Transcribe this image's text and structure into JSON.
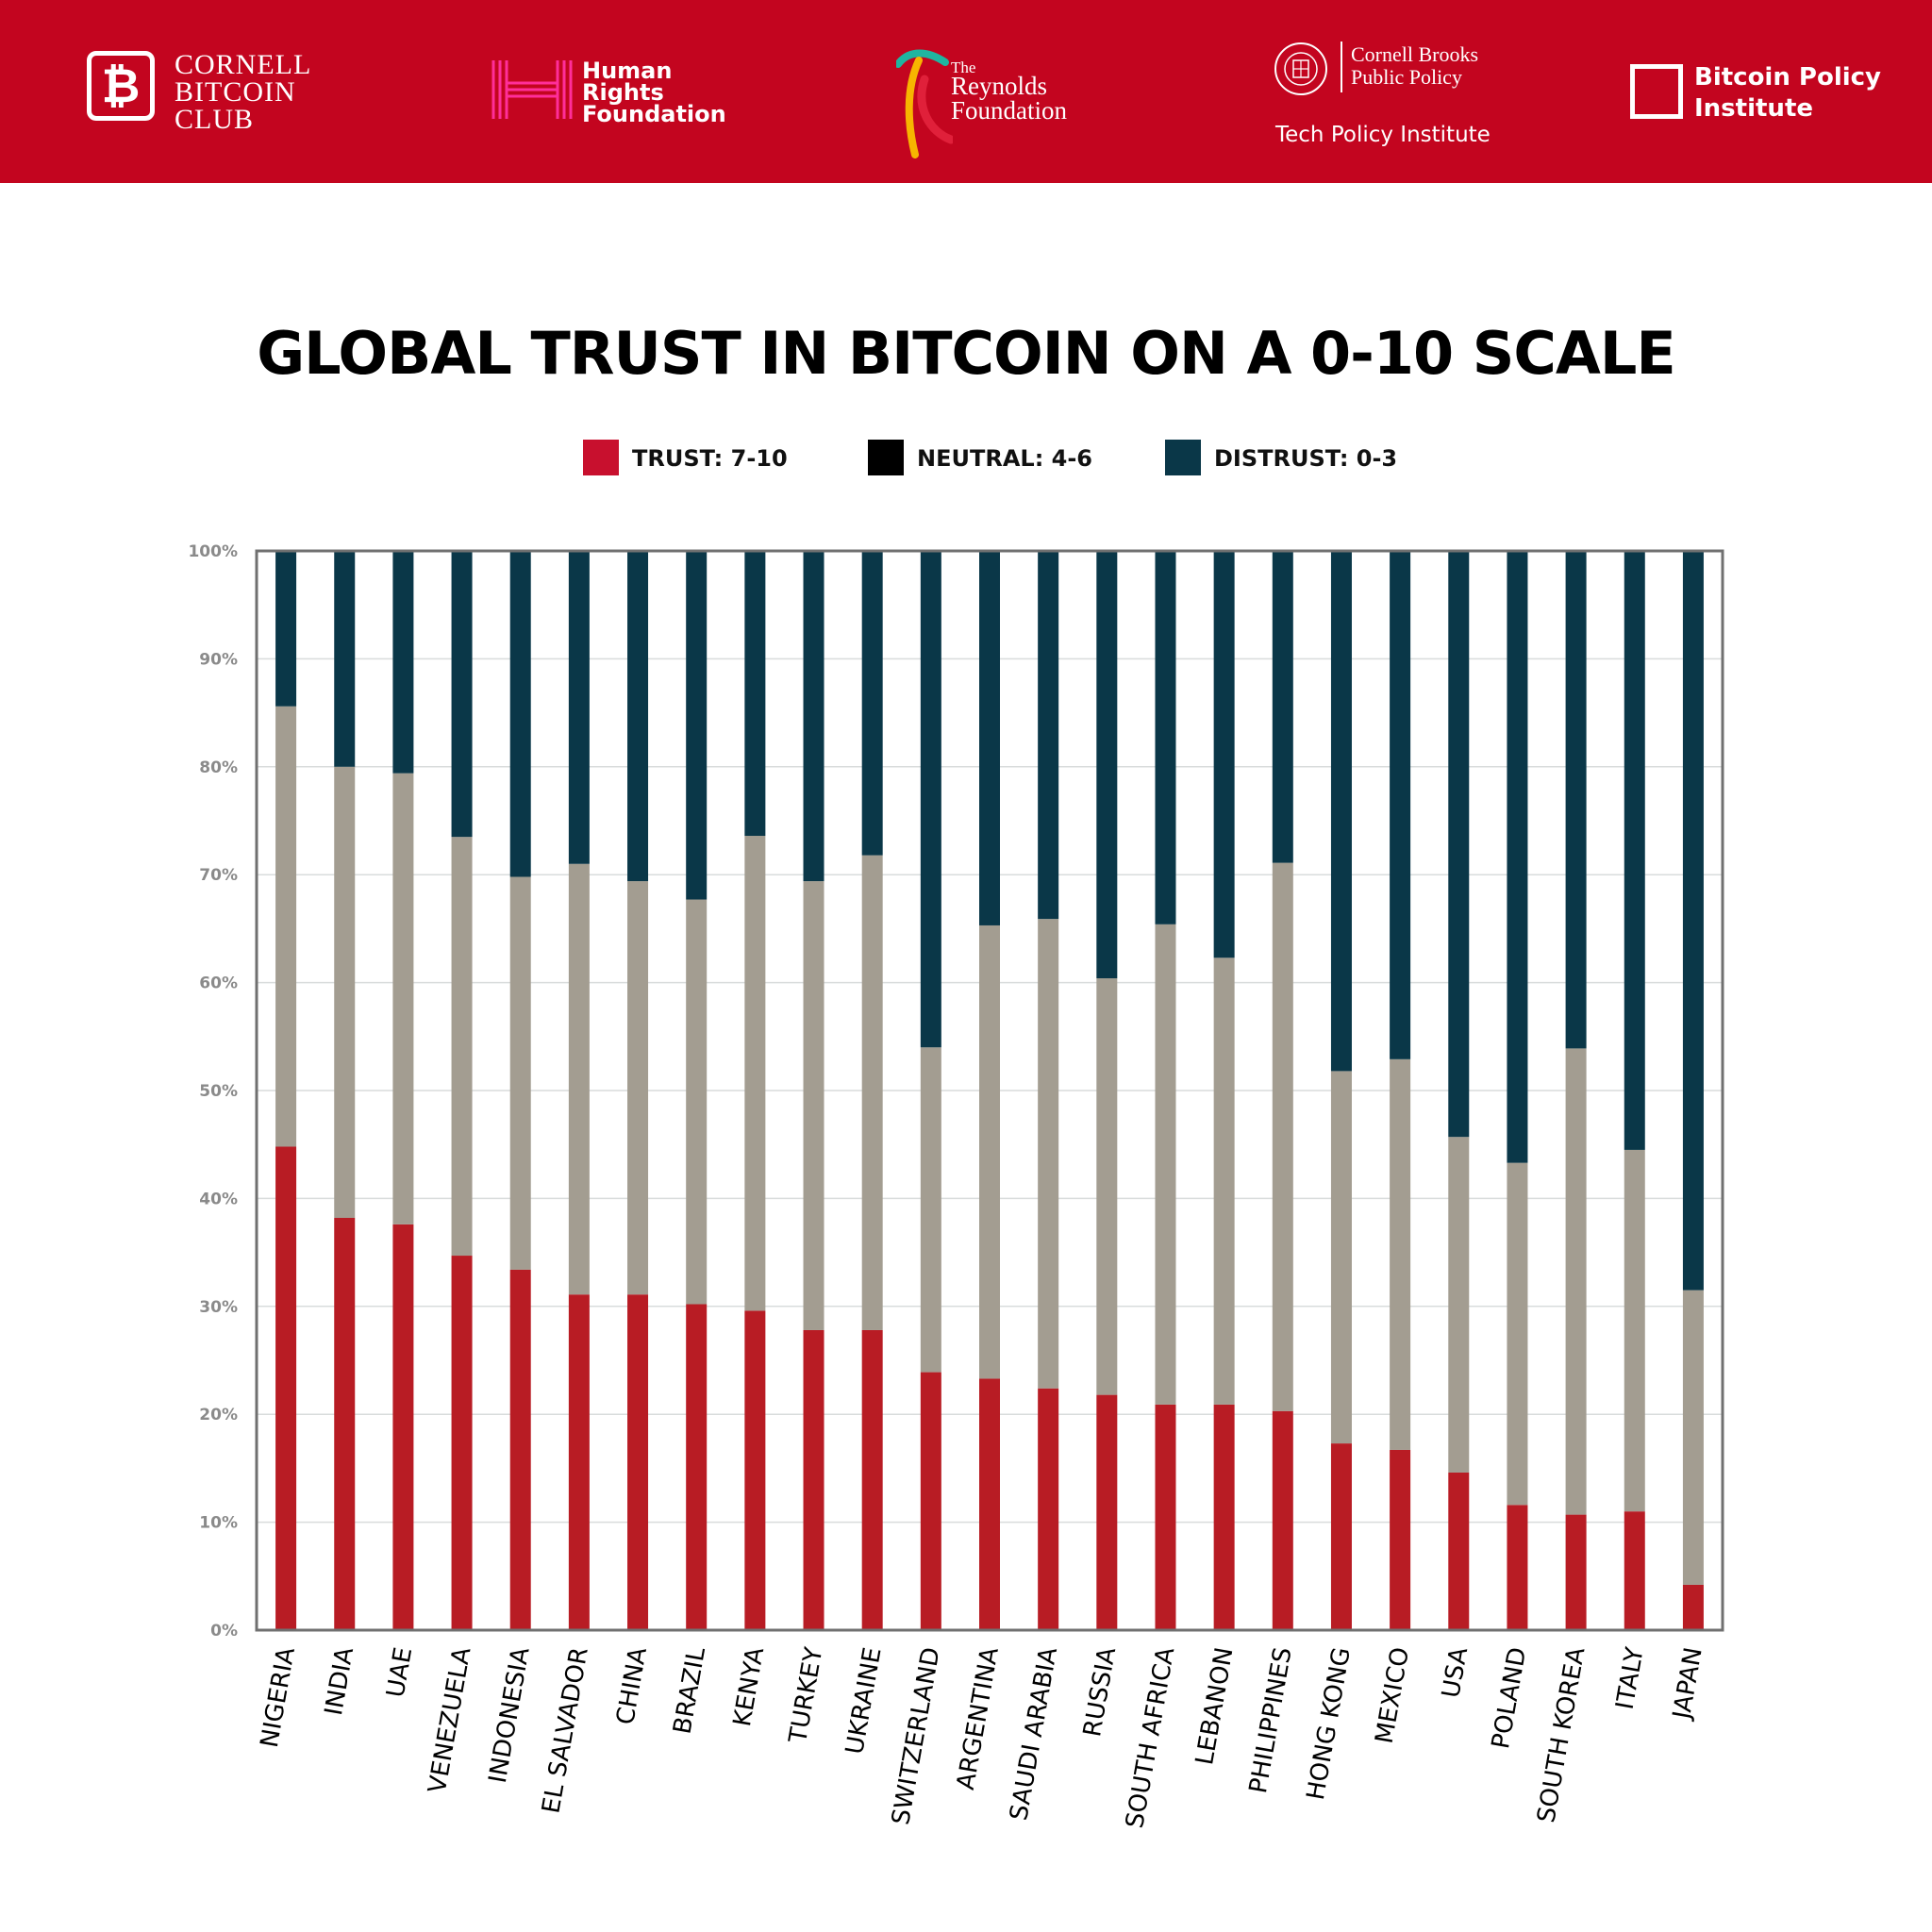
{
  "header": {
    "cornell_bitcoin_club": {
      "line1": "CORNELL",
      "line2": "BITCOIN",
      "line3": "CLUB"
    },
    "human_rights_foundation": {
      "line1": "Human",
      "line2": "Rights",
      "line3": "Foundation"
    },
    "reynolds_foundation": {
      "prefix": "The",
      "line1": "Reynolds",
      "line2": "Foundation"
    },
    "cornell_brooks": {
      "line1": "Cornell Brooks",
      "line2": "Public Policy",
      "sub": "Tech Policy Institute"
    },
    "bitcoin_policy_institute": {
      "line1": "Bitcoin Policy",
      "line2": "Institute"
    }
  },
  "colors": {
    "banner": "#c3051f",
    "trust": "#b81c24",
    "trust_legend": "#c8102e",
    "neutral": "#a39d91",
    "neutral_legend": "#000000",
    "distrust": "#0a3748",
    "grid": "#d9dcdc",
    "frame": "#707070",
    "tick_text": "#8a8a8a",
    "category_text": "#000000"
  },
  "legend": [
    {
      "label": "TRUST: 7-10",
      "color_key": "trust_legend"
    },
    {
      "label": "NEUTRAL: 4-6",
      "color_key": "neutral_legend"
    },
    {
      "label": "DISTRUST: 0-3",
      "color_key": "distrust"
    }
  ],
  "chart_data": {
    "type": "bar",
    "stacked": true,
    "title": "GLOBAL TRUST IN BITCOIN ON A 0-10 SCALE",
    "xlabel": "",
    "ylabel": "",
    "ylim": [
      0,
      100
    ],
    "y_ticks": [
      "0%",
      "10%",
      "20%",
      "30%",
      "40%",
      "50%",
      "60%",
      "70%",
      "80%",
      "90%",
      "100%"
    ],
    "grid": true,
    "legend_position": "top",
    "categories": [
      "NIGERIA",
      "INDIA",
      "UAE",
      "VENEZUELA",
      "INDONESIA",
      "EL SALVADOR",
      "CHINA",
      "BRAZIL",
      "KENYA",
      "TURKEY",
      "UKRAINE",
      "SWITZERLAND",
      "ARGENTINA",
      "SAUDI ARABIA",
      "RUSSIA",
      "SOUTH AFRICA",
      "LEBANON",
      "PHILIPPINES",
      "HONG KONG",
      "MEXICO",
      "USA",
      "POLAND",
      "SOUTH KOREA",
      "ITALY",
      "JAPAN"
    ],
    "series": [
      {
        "name": "TRUST: 7-10",
        "values": [
          44.8,
          38.2,
          37.6,
          34.7,
          33.4,
          31.1,
          31.1,
          30.2,
          29.6,
          27.8,
          27.8,
          23.9,
          23.3,
          22.4,
          21.8,
          20.9,
          20.9,
          20.3,
          17.3,
          16.7,
          14.6,
          11.6,
          10.7,
          11.0,
          4.2
        ]
      },
      {
        "name": "NEUTRAL: 4-6",
        "values": [
          40.8,
          41.8,
          41.8,
          38.8,
          36.4,
          39.9,
          38.3,
          37.5,
          44.0,
          41.6,
          44.0,
          30.1,
          42.0,
          43.5,
          38.6,
          44.5,
          41.4,
          50.8,
          34.5,
          36.2,
          31.1,
          31.7,
          43.2,
          33.5,
          27.3
        ]
      },
      {
        "name": "DISTRUST: 0-3",
        "values": [
          14.4,
          20.0,
          20.6,
          26.5,
          30.2,
          29.0,
          30.6,
          32.3,
          26.4,
          30.6,
          28.2,
          46.0,
          34.7,
          34.1,
          39.6,
          34.6,
          37.7,
          28.9,
          48.2,
          47.1,
          54.3,
          56.7,
          46.1,
          55.5,
          68.5
        ]
      }
    ]
  }
}
